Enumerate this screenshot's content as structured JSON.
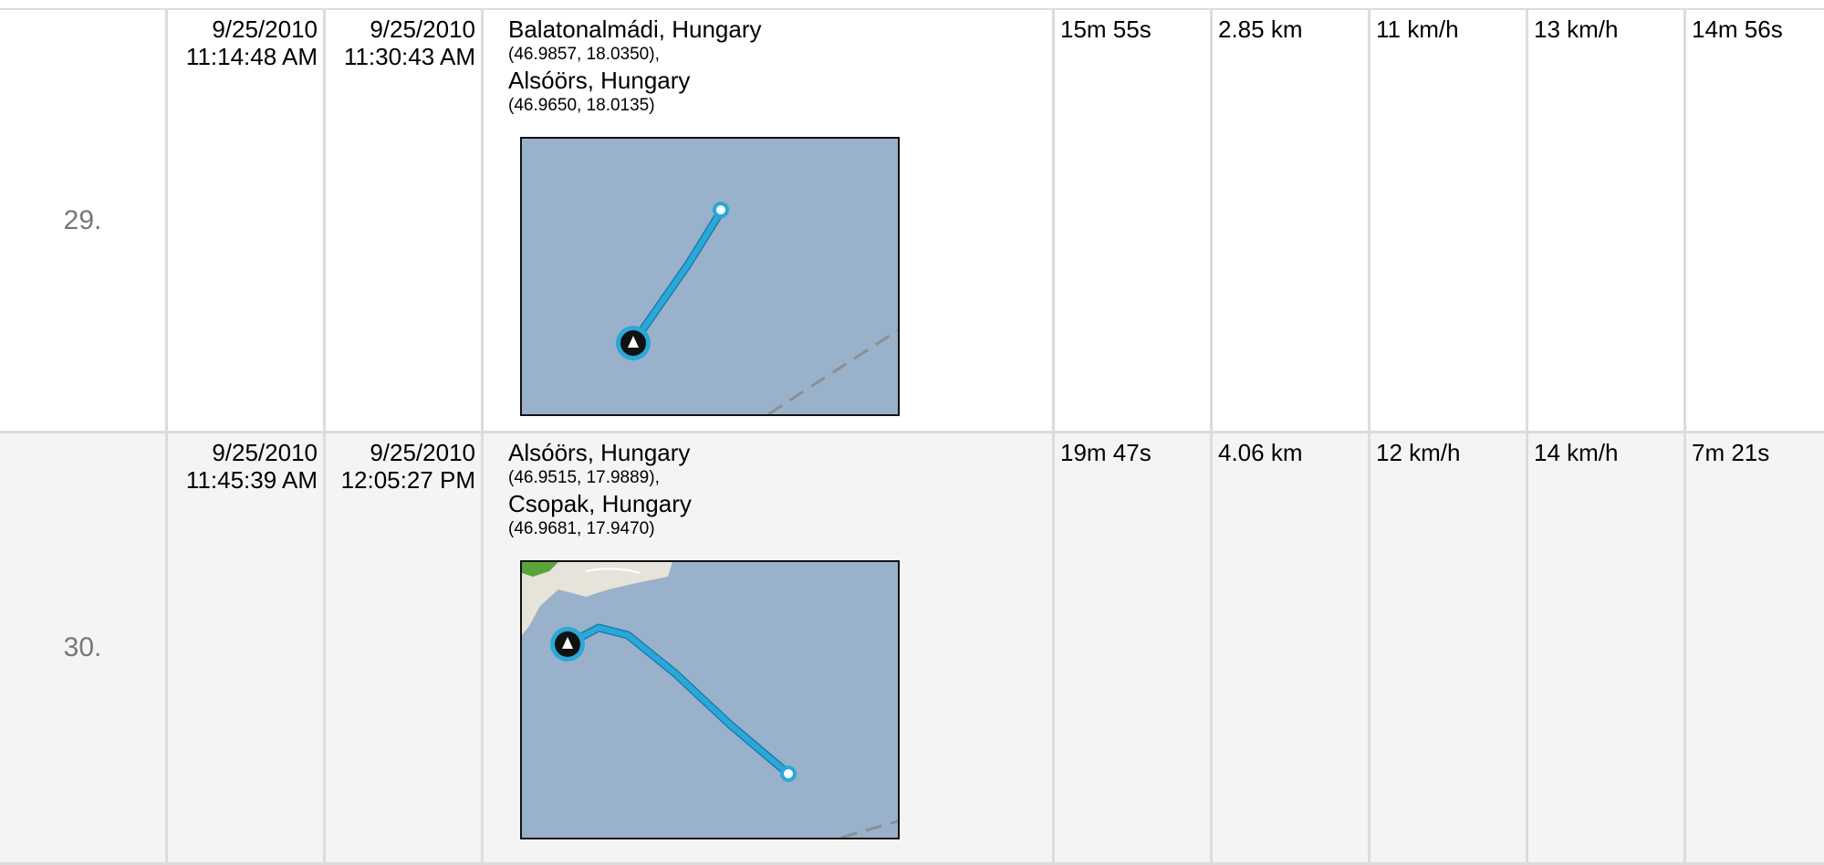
{
  "columns_shown": [
    "index",
    "start",
    "end",
    "location",
    "duration",
    "distance",
    "avg_speed",
    "max_speed",
    "last"
  ],
  "rows": [
    {
      "index": "29.",
      "start_date": "9/25/2010",
      "start_time": "11:14:48 AM",
      "end_date": "9/25/2010",
      "end_time": "11:30:43 AM",
      "from_name": "Balatonalmádi, Hungary",
      "from_coords": "(46.9857, 18.0350),",
      "to_name": "Alsóörs, Hungary",
      "to_coords": "(46.9650, 18.0135)",
      "duration": "15m 55s",
      "distance": "2.85 km",
      "avg_speed": "11 km/h",
      "max_speed": "13 km/h",
      "last": "14m 56s",
      "map_icons": [
        "start-marker-icon",
        "end-marker-icon"
      ]
    },
    {
      "index": "30.",
      "start_date": "9/25/2010",
      "start_time": "11:45:39 AM",
      "end_date": "9/25/2010",
      "end_time": "12:05:27 PM",
      "from_name": "Alsóörs, Hungary",
      "from_coords": "(46.9515, 17.9889),",
      "to_name": "Csopak, Hungary",
      "to_coords": "(46.9681, 17.9470)",
      "duration": "19m 47s",
      "distance": "4.06 km",
      "avg_speed": "12 km/h",
      "max_speed": "14 km/h",
      "last": "7m 21s",
      "map_icons": [
        "start-marker-icon",
        "end-marker-icon"
      ]
    }
  ],
  "colors": {
    "water": "#9ab1cb",
    "route": "#2aa8d8",
    "land": "#e6e3d8",
    "border": "#dcdcdc",
    "alt_row": "#f4f4f4"
  }
}
